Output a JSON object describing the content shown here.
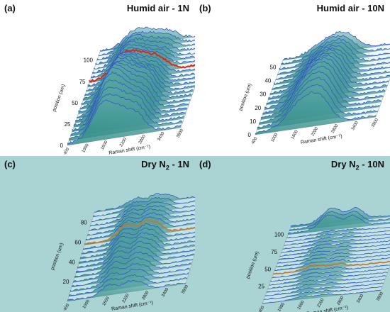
{
  "colors": {
    "background_dry": "#a9d4d3",
    "fill_top": "#5aa8a6",
    "fill_bottom": "#2f8a86",
    "spectrum_line": "#3657c7",
    "highlight_red": "#e0241e",
    "highlight_mixed": "#c9732f"
  },
  "chart_data": [
    {
      "id": "a",
      "type": "area",
      "panel_label": "(a)",
      "title_main": "Humid air - 1N",
      "title_sub": "",
      "xlabel": "Raman shift (cm⁻¹)",
      "ylabel": "position (um)",
      "x_ticks": [
        "400",
        "1000",
        "1600",
        "2200",
        "2800",
        "3400",
        "3800"
      ],
      "y_ticks": [
        "0",
        "25",
        "50",
        "75",
        "100"
      ],
      "y_range": [
        0,
        110
      ],
      "background": "white",
      "n_spectra": 22,
      "highlight": "red",
      "highlight_index": 14
    },
    {
      "id": "b",
      "type": "area",
      "panel_label": "(b)",
      "title_main": "Humid air - 10N",
      "title_sub": "",
      "xlabel": "Raman shift (cm⁻¹)",
      "ylabel": "position (um)",
      "x_ticks": [
        "400",
        "1000",
        "1600",
        "2200",
        "2800",
        "3400",
        "3800"
      ],
      "y_ticks": [
        "0",
        "10",
        "20",
        "30",
        "40",
        "50"
      ],
      "y_range": [
        0,
        55
      ],
      "background": "white",
      "n_spectra": 16,
      "highlight": "none",
      "highlight_index": -1
    },
    {
      "id": "c",
      "type": "area",
      "panel_label": "(c)",
      "title_main": "Dry N",
      "title_sub": "2",
      "title_suffix": " - 1N",
      "xlabel": "Raman shift (cm⁻¹)",
      "ylabel": "position (um)",
      "x_ticks": [
        "400",
        "1000",
        "1600",
        "2200",
        "2800",
        "3400",
        "3800"
      ],
      "y_ticks": [
        "20",
        "40",
        "60",
        "80"
      ],
      "y_range": [
        0,
        90
      ],
      "background": "teal",
      "n_spectra": 20,
      "highlight": "mixed",
      "highlight_index": 12
    },
    {
      "id": "d",
      "type": "area",
      "panel_label": "(d)",
      "title_main": "Dry N",
      "title_sub": "2",
      "title_suffix": " - 10N",
      "xlabel": "Raman shift (cm⁻¹)",
      "ylabel": "position (um)",
      "x_ticks": [
        "400",
        "1000",
        "1600",
        "2200",
        "2800",
        "3400",
        "3800"
      ],
      "y_ticks": [
        "25",
        "50",
        "75",
        "100"
      ],
      "y_range": [
        0,
        110
      ],
      "background": "teal",
      "n_spectra": 22,
      "highlight": "mixed",
      "highlight_index": 8
    }
  ]
}
